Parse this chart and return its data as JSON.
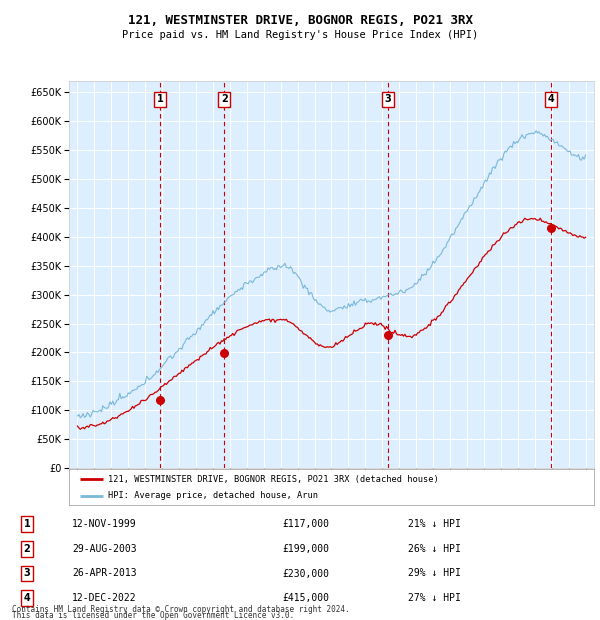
{
  "title": "121, WESTMINSTER DRIVE, BOGNOR REGIS, PO21 3RX",
  "subtitle": "Price paid vs. HM Land Registry's House Price Index (HPI)",
  "legend_line1": "121, WESTMINSTER DRIVE, BOGNOR REGIS, PO21 3RX (detached house)",
  "legend_line2": "HPI: Average price, detached house, Arun",
  "footnote1": "Contains HM Land Registry data © Crown copyright and database right 2024.",
  "footnote2": "This data is licensed under the Open Government Licence v3.0.",
  "sales": [
    {
      "num": 1,
      "date": "12-NOV-1999",
      "price": 117000,
      "hpi_pct": "21% ↓ HPI",
      "year": 1999.87
    },
    {
      "num": 2,
      "date": "29-AUG-2003",
      "price": 199000,
      "hpi_pct": "26% ↓ HPI",
      "year": 2003.66
    },
    {
      "num": 3,
      "date": "26-APR-2013",
      "price": 230000,
      "hpi_pct": "29% ↓ HPI",
      "year": 2013.32
    },
    {
      "num": 4,
      "date": "12-DEC-2022",
      "price": 415000,
      "hpi_pct": "27% ↓ HPI",
      "year": 2022.95
    }
  ],
  "ylim": [
    0,
    670000
  ],
  "yticks": [
    0,
    50000,
    100000,
    150000,
    200000,
    250000,
    300000,
    350000,
    400000,
    450000,
    500000,
    550000,
    600000,
    650000
  ],
  "xlim_start": 1994.5,
  "xlim_end": 2025.5,
  "hpi_color": "#7ab8d9",
  "sale_color": "#cc0000",
  "vline_color": "#cc0000",
  "bg_color": "#ddeeff",
  "grid_color": "#ffffff",
  "number_box_color": "#cc0000"
}
